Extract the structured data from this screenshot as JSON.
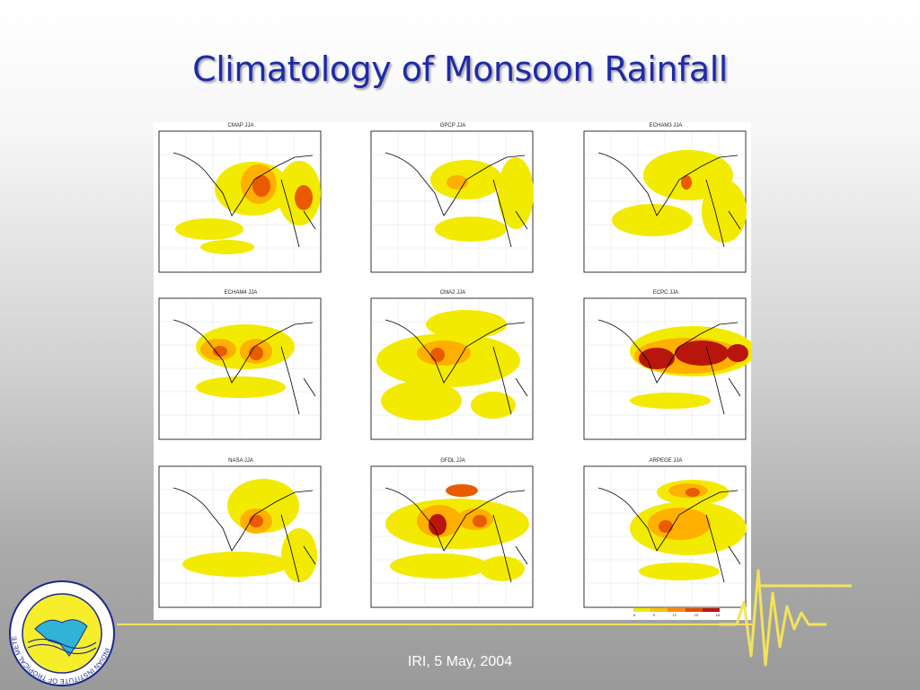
{
  "slide": {
    "title": "Climatology of Monsoon Rainfall",
    "footer": "IRI, 5 May, 2004"
  },
  "panels": [
    {
      "title": "CMAP  JJA"
    },
    {
      "title": "GPCP  JJA"
    },
    {
      "title": "ECHAM3  JJA"
    },
    {
      "title": "ECHAM4  JJA"
    },
    {
      "title": "CMA2  JJA"
    },
    {
      "title": "ECPC  JJA"
    },
    {
      "title": "NASA  JJA"
    },
    {
      "title": "GFDL  JJA"
    },
    {
      "title": "ARPEGE  JJA"
    }
  ],
  "legend": {
    "ticks": [
      "6",
      "9",
      "12",
      "15",
      "18"
    ],
    "colors": [
      "#f2ea00",
      "#ffc200",
      "#ff8a00",
      "#e34a00",
      "#b8160b"
    ]
  },
  "logo": {
    "ring_text": "INDIAN INSTITUTE OF TROPICAL METEOROLOGY PUNE"
  },
  "colors": {
    "title": "#1f2aa8",
    "rain_low": "#f2ea00",
    "rain_mid": "#ffb000",
    "rain_high": "#ea5a00",
    "rain_max": "#b8160b",
    "accent_line": "#f2e35a"
  }
}
